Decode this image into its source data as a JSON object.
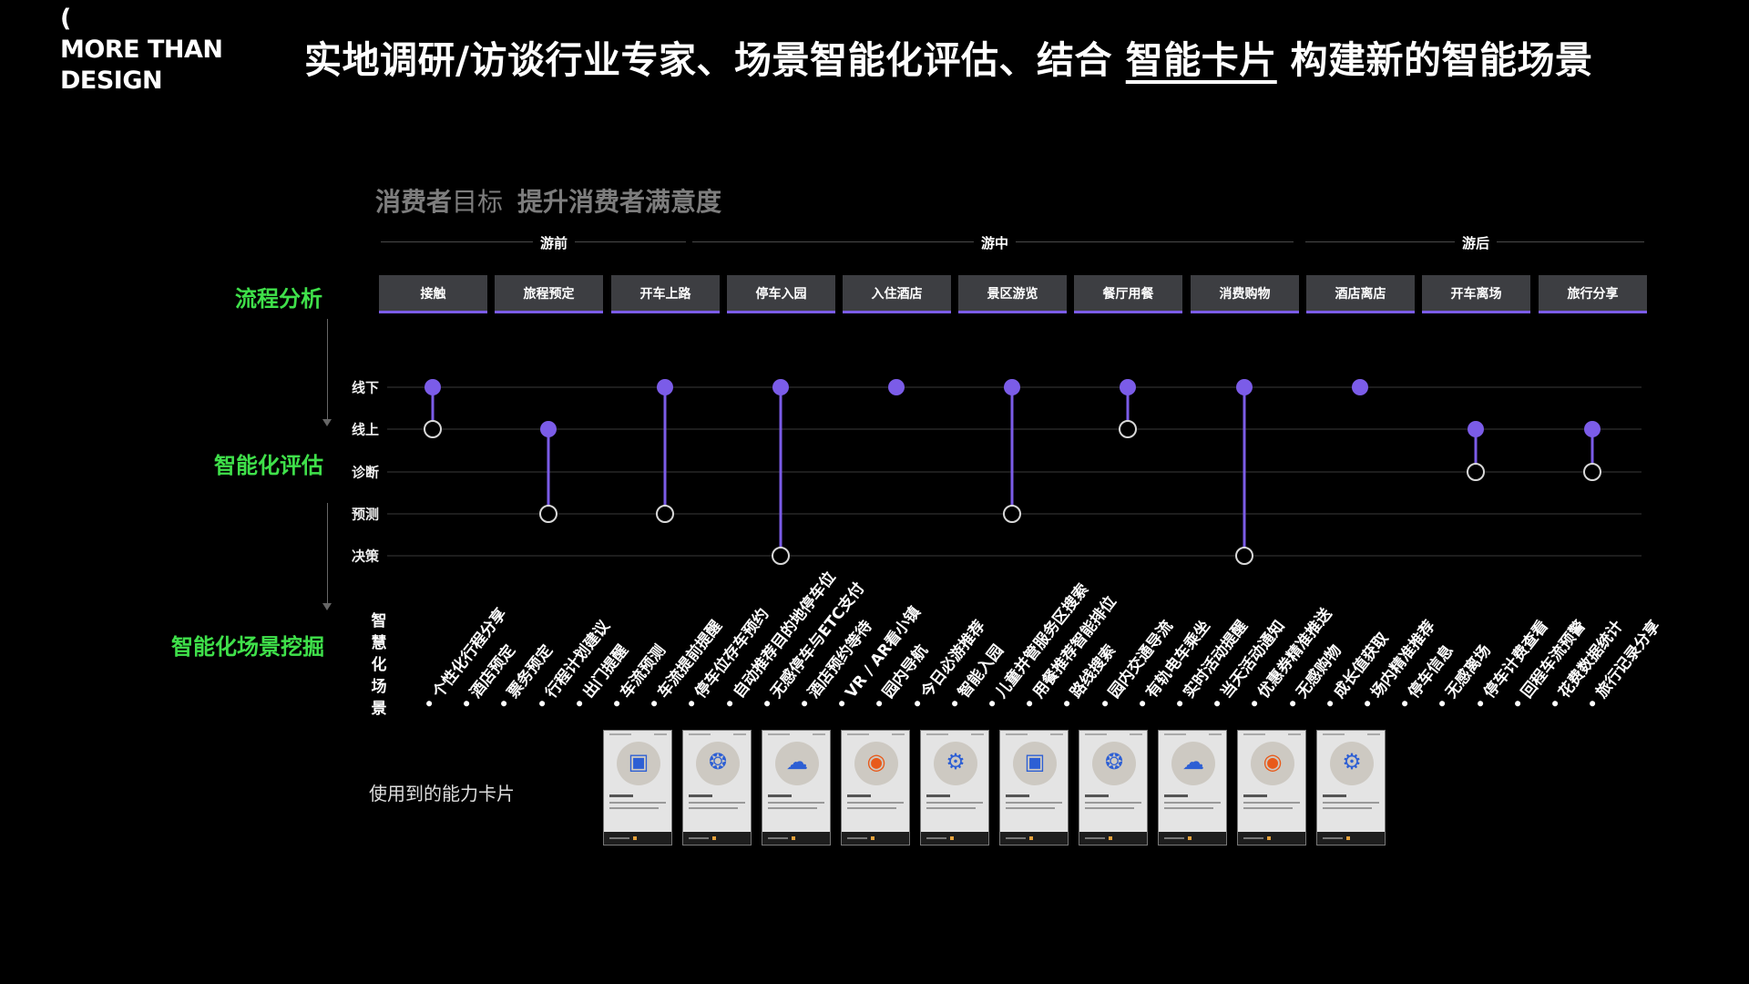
{
  "logo": {
    "paren": "(",
    "line1": "MORE THAN",
    "line2": "DESIGN"
  },
  "headline": {
    "before": "实地调研/访谈行业专家、场景智能化评估、结合 ",
    "highlight": "智能卡片",
    "after": " 构建新的智能场景"
  },
  "goal": {
    "consumer": "消费者",
    "target_word": "目标",
    "statement": "提升消费者满意度"
  },
  "phases": [
    {
      "label": "游前"
    },
    {
      "label": "游中"
    },
    {
      "label": "游后"
    }
  ],
  "sections": {
    "flow": "流程分析",
    "assessment": "智能化评估",
    "mining": "智能化场景挖掘"
  },
  "stages": [
    "接触",
    "旅程预定",
    "开车上路",
    "停车入园",
    "入住酒店",
    "景区游览",
    "餐厅用餐",
    "消费购物",
    "酒店离店",
    "开车离场",
    "旅行分享"
  ],
  "levels": [
    "线下",
    "线上",
    "诊断",
    "预测",
    "决策"
  ],
  "lollipops": [
    {
      "stage": "接触",
      "from": "线下",
      "to": "线上"
    },
    {
      "stage": "旅程预定",
      "from": "线上",
      "to": "预测"
    },
    {
      "stage": "开车上路",
      "from": "线下",
      "to": "预测"
    },
    {
      "stage": "停车入园",
      "from": "线下",
      "to": "决策"
    },
    {
      "stage": "入住酒店",
      "from": "线下",
      "to": "线下"
    },
    {
      "stage": "景区游览",
      "from": "线下",
      "to": "预测"
    },
    {
      "stage": "餐厅用餐",
      "from": "线下",
      "to": "线上"
    },
    {
      "stage": "消费购物",
      "from": "线下",
      "to": "决策"
    },
    {
      "stage": "酒店离店",
      "from": "线下",
      "to": "线下"
    },
    {
      "stage": "开车离场",
      "from": "线上",
      "to": "诊断"
    },
    {
      "stage": "旅行分享",
      "from": "线上",
      "to": "诊断"
    }
  ],
  "scenarios_title": "智慧化场景",
  "scenarios": [
    "个性化行程分享",
    "酒店预定",
    "票务预定",
    "行程计划建议",
    "出门提醒",
    "车流预测",
    "车流提前提醒",
    "停车位存车预约",
    "自动推荐目的地停车位",
    "无感停车与ETC支付",
    "酒店预约等待",
    "VR / AR看小镇",
    "园内导航",
    "今日必游推荐",
    "智能入园",
    "儿童并管服务区搜索",
    "用餐推荐智能排位",
    "路线搜索",
    "园内交通导流",
    "有轨电车乘坐",
    "实时活动提醒",
    "当天活动通知",
    "优惠券精准推送",
    "无感购物",
    "成长值获取",
    "场内精准推荐",
    "停车信息",
    "无感离场",
    "停车计费查看",
    "回程车流预警",
    "花费数据统计",
    "旅行记录分享"
  ],
  "cards_label": "使用到的能力卡片",
  "cards": [
    {
      "icon": "frame-icon",
      "glyph": "▣",
      "accent": "#2d5fd4"
    },
    {
      "icon": "grid-circles-icon",
      "glyph": "❂",
      "accent": "#2d5fd4"
    },
    {
      "icon": "cloud-user-icon",
      "glyph": "☁",
      "accent": "#2d5fd4"
    },
    {
      "icon": "target-circle-icon",
      "glyph": "◉",
      "accent": "#e85a1a"
    },
    {
      "icon": "robot-icon",
      "glyph": "⚙",
      "accent": "#2d5fd4"
    },
    {
      "icon": "frame-icon",
      "glyph": "▣",
      "accent": "#2d5fd4"
    },
    {
      "icon": "grid-circles-icon",
      "glyph": "❂",
      "accent": "#2d5fd4"
    },
    {
      "icon": "cloud-user-icon",
      "glyph": "☁",
      "accent": "#2d5fd4"
    },
    {
      "icon": "target-circle-icon",
      "glyph": "◉",
      "accent": "#e85a1a"
    },
    {
      "icon": "robot-icon",
      "glyph": "⚙",
      "accent": "#2d5fd4"
    }
  ],
  "colors": {
    "accent": "#7b5ce8",
    "section_green": "#3fe04a",
    "stage_bg": "#3d3e42"
  }
}
